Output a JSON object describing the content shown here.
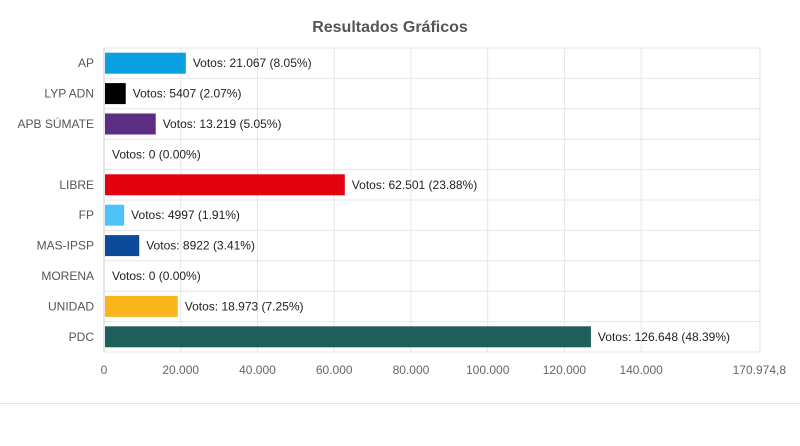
{
  "chart_data": {
    "type": "bar",
    "orientation": "horizontal",
    "title": "Resultados Gráficos",
    "label_prefix": "Votos: ",
    "categories": [
      "AP",
      "LYP ADN",
      "APB SÚMATE",
      "",
      "LIBRE",
      "FP",
      "MAS-IPSP",
      "MORENA",
      "UNIDAD",
      "PDC"
    ],
    "values": [
      21067,
      5407,
      13219,
      0,
      62501,
      4997,
      8922,
      0,
      18973,
      126648
    ],
    "data_labels": [
      "Votos: 21.067 (8.05%)",
      "Votos: 5407 (2.07%)",
      "Votos: 13.219 (5.05%)",
      "Votos: 0 (0.00%)",
      "Votos: 62.501 (23.88%)",
      "Votos: 4997 (1.91%)",
      "Votos: 8922 (3.41%)",
      "Votos: 0 (0.00%)",
      "Votos: 18.973 (7.25%)",
      "Votos: 126.648 (48.39%)"
    ],
    "colors": [
      "#0ba0e2",
      "#000000",
      "#5c2d82",
      "#cccccc",
      "#e3000f",
      "#4fc3f7",
      "#0d4a9a",
      "#cccccc",
      "#fbb61e",
      "#1f5f5b"
    ],
    "xlim": [
      0,
      170974.8
    ],
    "xticks": [
      0,
      20000,
      40000,
      60000,
      80000,
      100000,
      120000,
      140000,
      170974.8
    ],
    "xtick_labels": [
      "0",
      "20.000",
      "40.000",
      "60.000",
      "80.000",
      "100.000",
      "120.000",
      "140.000",
      "170.974,8"
    ],
    "grid": true,
    "legend": "none"
  }
}
